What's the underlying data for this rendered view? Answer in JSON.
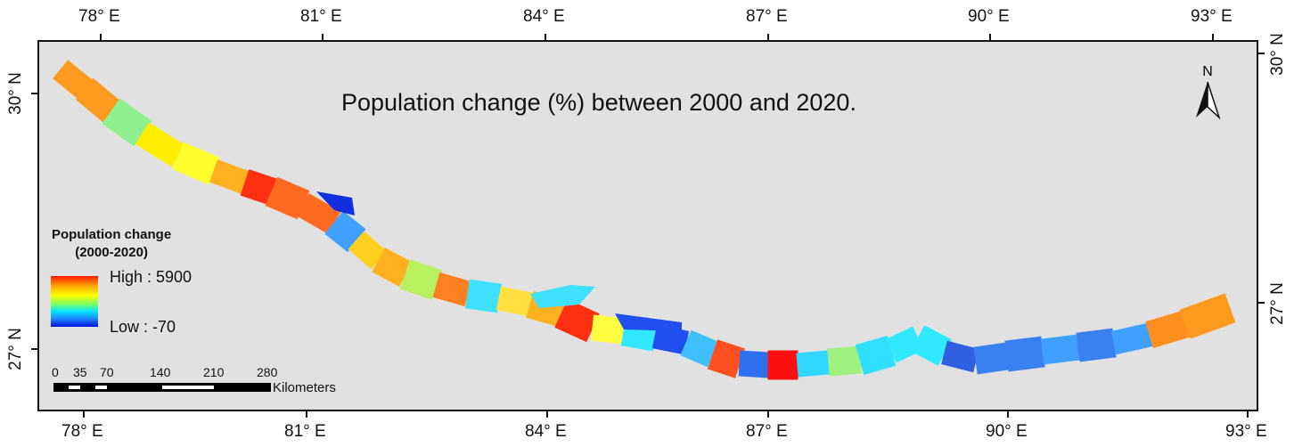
{
  "title": "Population change (%) between 2000 and 2020.",
  "top_axis": [
    "78° E",
    "81° E",
    "84° E",
    "87° E",
    "90° E",
    "93° E"
  ],
  "bottom_axis": [
    "78° E",
    "81° E",
    "84° E",
    "87° E",
    "90° E",
    "93° E"
  ],
  "left_axis": [
    "30° N",
    "27° N"
  ],
  "right_axis": [
    "30° N",
    "27° N"
  ],
  "north_label": "N",
  "legend": {
    "title_line1": "Population change",
    "title_line2": "(2000-2020)",
    "high": "High : 5900",
    "low": "Low : -70",
    "colors": [
      "#ff1a00",
      "#ffaa00",
      "#ffff00",
      "#7fff60",
      "#00e5ff",
      "#2080ff",
      "#0010e0"
    ]
  },
  "scale_bar": {
    "ticks": [
      "0",
      "35",
      "70",
      "140",
      "210",
      "280"
    ],
    "unit": "Kilometers"
  },
  "region_colors": [
    "#ff9a20",
    "#ff9a20",
    "#90f090",
    "#ffee00",
    "#ffff30",
    "#ffb020",
    "#ff3010",
    "#ff6a20",
    "#ff6a20",
    "#40a0ff",
    "#ffd020",
    "#ffb020",
    "#b8f060",
    "#ff8020",
    "#40e0ff",
    "#ffe040",
    "#ffb020",
    "#ff3010",
    "#ffff40",
    "#30e8ff",
    "#2050f0",
    "#40c0ff",
    "#ff5020",
    "#3070f0",
    "#ff1010",
    "#30d8ff",
    "#a0f080",
    "#30e0ff",
    "#30e8ff",
    "#30e8ff",
    "#3060e0",
    "#3a80f0",
    "#3a80f0",
    "#40a0ff",
    "#3a80f0",
    "#40a0ff",
    "#ff9020"
  ]
}
